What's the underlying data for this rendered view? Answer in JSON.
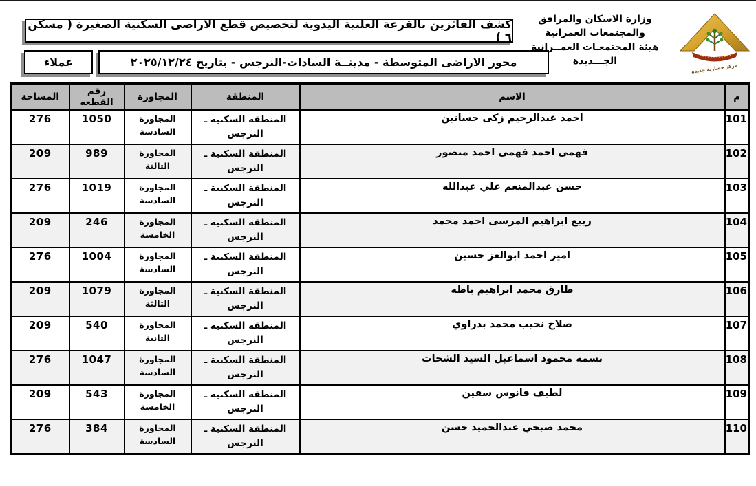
{
  "page": {
    "ministry_line1": "وزارة الاسكان والمرافق والمجتمعات العمرانية",
    "ministry_line2": "هيئة المجتمعـات العمــرانية الجـــديدة",
    "title1": "كشف الفائزين بالقرعة العلنية اليدوية لتخصيص قطع الاراضى السكنية الصغيرة ( مسكن ٦ )",
    "title2": "محور الاراضى المتوسطة - مدينــة السادات-النرجس  - بتاريخ ٢٠٢٥/١٢/٢٤",
    "audience_label": "عملاء",
    "logo_name": "new-urban-communities-authority-logo"
  },
  "colors": {
    "header_bg": "#bcbcbc",
    "row_alt_bg": "#f1f1f1",
    "border": "#000000",
    "box_shadow": "#8f8f8f",
    "logo_gold": "#d9a62e",
    "logo_gold_dark": "#a67c1b",
    "logo_green": "#2f7a2f",
    "logo_red": "#9c2e12"
  },
  "table": {
    "headers": {
      "index": "م",
      "name": "الاسم",
      "region": "المنطقة",
      "district": "المجاورة",
      "plot": "رقم القطعه",
      "area": "المساحة"
    },
    "rows": [
      {
        "index": "101",
        "name": "احمد عبدالرحيم زكى حسانين",
        "region": "المنطقة السكنية ـ النرجس",
        "district": "المجاورة السادسة",
        "plot": "1050",
        "area": "276"
      },
      {
        "index": "102",
        "name": "فهمى احمد فهمى احمد منصور",
        "region": "المنطقة السكنية ـ النرجس",
        "district": "المجاورة الثالثة",
        "plot": "989",
        "area": "209"
      },
      {
        "index": "103",
        "name": "حسن عبدالمنعم علي عبدالله",
        "region": "المنطقة السكنية ـ النرجس",
        "district": "المجاورة السادسة",
        "plot": "1019",
        "area": "276"
      },
      {
        "index": "104",
        "name": "ربيع ابراهيم المرسى احمد محمد",
        "region": "المنطقة السكنية ـ النرجس",
        "district": "المجاورة الخامسة",
        "plot": "246",
        "area": "209"
      },
      {
        "index": "105",
        "name": "امير احمد ابوالعز حسين",
        "region": "المنطقة السكنية ـ النرجس",
        "district": "المجاورة السادسة",
        "plot": "1004",
        "area": "276"
      },
      {
        "index": "106",
        "name": "طارق محمد ابراهيم باظه",
        "region": "المنطقة السكنية ـ النرجس",
        "district": "المجاورة الثالثة",
        "plot": "1079",
        "area": "209"
      },
      {
        "index": "107",
        "name": "صلاح نجيب محمد بدراوي",
        "region": "المنطقة السكنية ـ النرجس",
        "district": "المجاورة الثانية",
        "plot": "540",
        "area": "209"
      },
      {
        "index": "108",
        "name": "بسمه محمود اسماعيل السيد الشحات",
        "region": "المنطقة السكنية ـ النرجس",
        "district": "المجاورة السادسة",
        "plot": "1047",
        "area": "276"
      },
      {
        "index": "109",
        "name": "لطيف فانوس سفين",
        "region": "المنطقة السكنية ـ النرجس",
        "district": "المجاورة الخامسة",
        "plot": "543",
        "area": "209"
      },
      {
        "index": "110",
        "name": "محمد صبحي عبدالحميد حسن",
        "region": "المنطقة السكنية ـ النرجس",
        "district": "المجاورة السادسة",
        "plot": "384",
        "area": "276"
      }
    ]
  }
}
